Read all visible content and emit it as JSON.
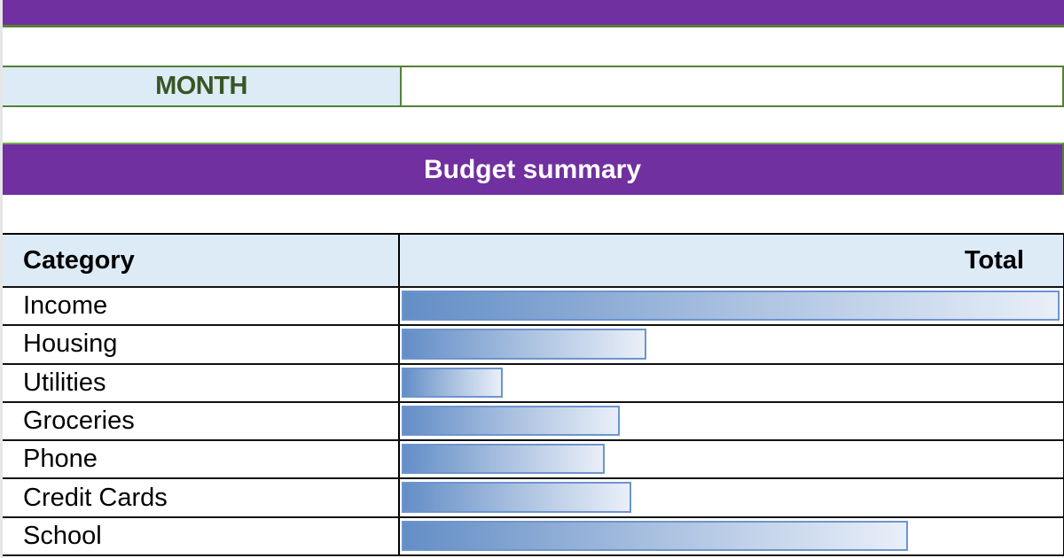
{
  "header": {
    "month_label": "MONTH",
    "month_value": ""
  },
  "summary": {
    "title": "Budget summary",
    "columns": {
      "category": "Category",
      "total": "Total"
    },
    "rows": [
      {
        "category": "Income",
        "bar_pct": 100
      },
      {
        "category": "Housing",
        "bar_pct": 37.2
      },
      {
        "category": "Utilities",
        "bar_pct": 15.3
      },
      {
        "category": "Groceries",
        "bar_pct": 33.2
      },
      {
        "category": "Phone",
        "bar_pct": 30.9
      },
      {
        "category": "Credit Cards",
        "bar_pct": 34.9
      },
      {
        "category": "School",
        "bar_pct": 77.0
      }
    ]
  },
  "colors": {
    "banner_purple": "#7030a0",
    "border_green": "#538135",
    "header_fill": "#ddebf7",
    "month_text": "#375623",
    "databar_start": "#638ec6",
    "databar_end": "#e9eff8",
    "databar_border": "#6d95cd"
  }
}
